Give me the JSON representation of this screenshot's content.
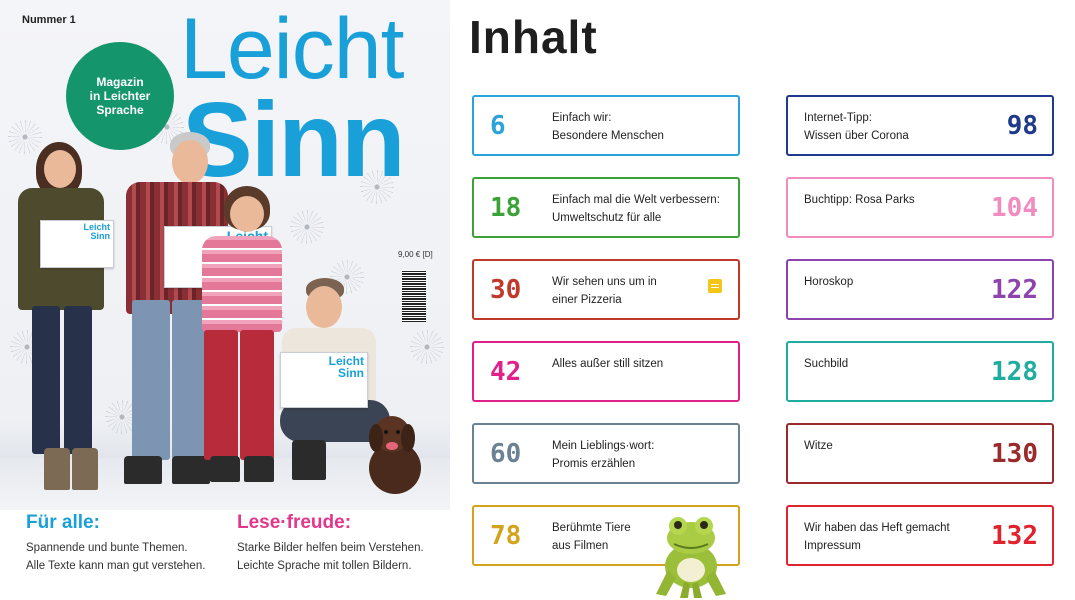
{
  "cover": {
    "issue": "Nummer 1",
    "logo_top": "Leicht",
    "logo_bottom": "Sinn",
    "badge_lines": [
      "Magazin",
      "in Leichter",
      "Sprache"
    ],
    "magazine_logo_top": "Leicht",
    "magazine_logo_bottom": "Sinn",
    "price": "9,00 € [D]",
    "left_tagline": {
      "title": "Für alle:",
      "lines": [
        "Spannende und bunte Themen.",
        "Alle Texte kann man gut verstehen."
      ]
    },
    "right_tagline": {
      "title": "Lese·freude:",
      "lines": [
        "Starke Bilder helfen beim Verstehen.",
        "Leichte Sprache mit tollen Bildern."
      ]
    },
    "colors": {
      "logo": "#1aa0d8",
      "badge": "#14956b",
      "left_title": "#1aa0d8",
      "right_title": "#e4368b"
    }
  },
  "toc": {
    "title": "Inhalt",
    "left": [
      {
        "page": "6",
        "lines": [
          "Einfach wir:",
          "Besondere Menschen"
        ],
        "color": "#2aa3db"
      },
      {
        "page": "18",
        "lines": [
          "Einfach mal die Welt verbessern:",
          "Umweltschutz für alle"
        ],
        "color": "#3aa236"
      },
      {
        "page": "30",
        "lines": [
          "Wir sehen uns um in",
          "einer Pizzeria"
        ],
        "color": "#c0392b",
        "icon": "note-icon"
      },
      {
        "page": "42",
        "lines": [
          "Alles außer still sitzen",
          ""
        ],
        "color": "#e0218a"
      },
      {
        "page": "60",
        "lines": [
          "Mein Lieblings·wort:",
          "Promis erzählen"
        ],
        "color": "#6b8294"
      },
      {
        "page": "78",
        "lines": [
          "Berühmte Tiere",
          "aus Filmen"
        ],
        "color": "#d4a31c"
      }
    ],
    "right": [
      {
        "page": "98",
        "lines": [
          "Internet-Tipp:",
          "Wissen über Corona"
        ],
        "color": "#1f3a8a"
      },
      {
        "page": "104",
        "lines": [
          "Buchtipp: Rosa Parks",
          ""
        ],
        "color": "#f08cbf"
      },
      {
        "page": "122",
        "lines": [
          "Horoskop",
          ""
        ],
        "color": "#8e44ad"
      },
      {
        "page": "128",
        "lines": [
          "Suchbild",
          ""
        ],
        "color": "#1fada0"
      },
      {
        "page": "130",
        "lines": [
          "Witze",
          ""
        ],
        "color": "#9b2a2a"
      },
      {
        "page": "132",
        "lines": [
          "Wir haben das Heft gemacht",
          "Impressum"
        ],
        "color": "#e0232e"
      }
    ]
  }
}
